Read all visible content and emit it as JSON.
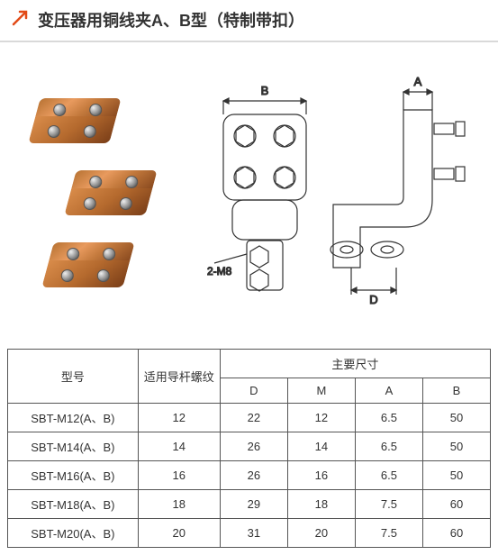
{
  "header": {
    "title": "变压器用铜线夹A、B型（特制带扣）"
  },
  "diagram": {
    "label_B": "B",
    "label_A": "A",
    "label_D": "D",
    "label_2M8": "2-M8"
  },
  "table": {
    "type": "table",
    "columns": [
      "型号",
      "适用导杆螺纹",
      "D",
      "M",
      "A",
      "B"
    ],
    "header_group": "主要尺寸",
    "rows": [
      [
        "SBT-M12(A、B)",
        "12",
        "22",
        "12",
        "6.5",
        "50"
      ],
      [
        "SBT-M14(A、B)",
        "14",
        "26",
        "14",
        "6.5",
        "50"
      ],
      [
        "SBT-M16(A、B)",
        "16",
        "26",
        "16",
        "6.5",
        "50"
      ],
      [
        "SBT-M18(A、B)",
        "18",
        "29",
        "18",
        "7.5",
        "60"
      ],
      [
        "SBT-M20(A、B)",
        "20",
        "31",
        "20",
        "7.5",
        "60"
      ]
    ],
    "border_color": "#555555",
    "text_color": "#333333",
    "background_color": "#ffffff",
    "fontsize": 13
  },
  "colors": {
    "accent": "#e24a17",
    "divider": "#d9d9d9",
    "copper1": "#b87333",
    "copper2": "#e89a5e",
    "copper3": "#8a4a1f",
    "stroke": "#333333"
  }
}
